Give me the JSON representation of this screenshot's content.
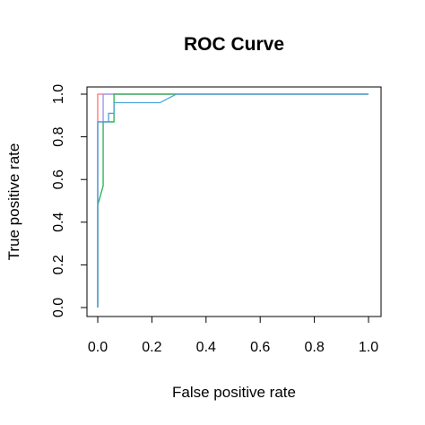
{
  "chart_data": {
    "type": "line",
    "title": "ROC Curve",
    "xlabel": "False positive rate",
    "ylabel": "True positive rate",
    "xlim": [
      0,
      1
    ],
    "ylim": [
      0,
      1
    ],
    "grid": false,
    "x_ticks": [
      "0.0",
      "0.2",
      "0.4",
      "0.6",
      "0.8",
      "1.0"
    ],
    "y_ticks": [
      "0.0",
      "0.2",
      "0.4",
      "0.6",
      "0.8",
      "1.0"
    ],
    "series": [
      {
        "color": "#f8766d",
        "points": [
          [
            0,
            0
          ],
          [
            0,
            0.87
          ],
          [
            0,
            1
          ],
          [
            1,
            1
          ]
        ]
      },
      {
        "color": "#9b8ff0",
        "points": [
          [
            0,
            0
          ],
          [
            0,
            0.87
          ],
          [
            0.02,
            0.87
          ],
          [
            0.02,
            1
          ],
          [
            1,
            1
          ]
        ]
      },
      {
        "color": "#22b14c",
        "points": [
          [
            0,
            0
          ],
          [
            0,
            0.48
          ],
          [
            0.02,
            0.57
          ],
          [
            0.02,
            0.87
          ],
          [
            0.06,
            0.87
          ],
          [
            0.06,
            1
          ],
          [
            1,
            1
          ]
        ]
      },
      {
        "color": "#4ca3dd",
        "points": [
          [
            0,
            0
          ],
          [
            0,
            0.87
          ],
          [
            0.04,
            0.87
          ],
          [
            0.04,
            0.91
          ],
          [
            0.06,
            0.91
          ],
          [
            0.06,
            0.96
          ],
          [
            0.23,
            0.96
          ],
          [
            0.29,
            1
          ],
          [
            1,
            1
          ]
        ]
      }
    ]
  }
}
